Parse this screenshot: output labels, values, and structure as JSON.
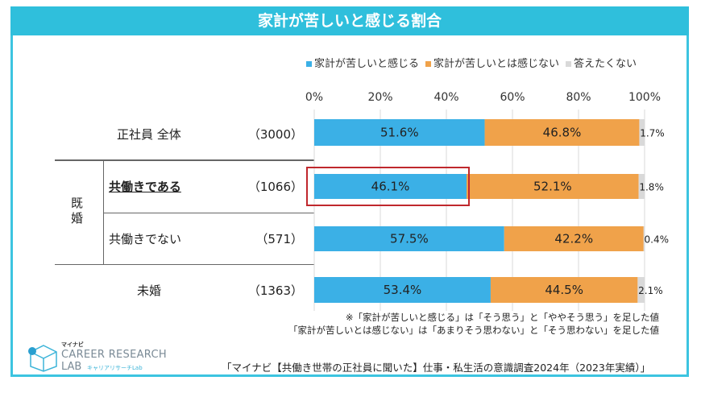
{
  "title": "家計が苦しいと感じる割合",
  "chart_data": {
    "type": "bar",
    "stacked": true,
    "orientation": "horizontal",
    "xlim": [
      0,
      100
    ],
    "ticks": [
      "0%",
      "20%",
      "40%",
      "60%",
      "80%",
      "100%"
    ],
    "grid": true,
    "legend_placement": "top",
    "categories": [
      {
        "label": "正社員 全体",
        "n": "（3000）"
      },
      {
        "label": "共働きである",
        "n": "（1066）",
        "group": "既婚",
        "highlight": true
      },
      {
        "label": "共働きでない",
        "n": "（571）",
        "group": "既婚"
      },
      {
        "label": "未婚",
        "n": "（1363）"
      }
    ],
    "group_label": "既婚",
    "series": [
      {
        "name": "家計が苦しいと感じる",
        "color": "#3bb0e6",
        "values": [
          51.6,
          46.1,
          57.5,
          53.4
        ],
        "labels": [
          "51.6%",
          "46.1%",
          "57.5%",
          "53.4%"
        ]
      },
      {
        "name": "家計が苦しいとは感じない",
        "color": "#f0a24a",
        "values": [
          46.8,
          52.1,
          42.2,
          44.5
        ],
        "labels": [
          "46.8%",
          "52.1%",
          "42.2%",
          "44.5%"
        ]
      },
      {
        "name": "答えたくない",
        "color": "#d9d9d9",
        "values": [
          1.7,
          1.8,
          0.4,
          2.1
        ],
        "labels": [
          "1.7%",
          "1.8%",
          "0.4%",
          "2.1%"
        ]
      }
    ],
    "highlight_color": "#c0282d"
  },
  "notes": [
    "※「家計が苦しいと感じる」は「そう思う」と「ややそう思う」を足した値",
    "「家計が苦しいとは感じない」は「あまりそう思わない」と「そう思わない」を足した値"
  ],
  "source": "「マイナビ【共働き世帯の正社員に聞いた】仕事・私生活の意識調査2024年（2023年実績）」",
  "logo": {
    "top": "マイナビ",
    "line1": "CAREER RESEARCH",
    "line2": "LAB",
    "sub": "キャリアリサーチLab",
    "color": "#3cb4d8"
  }
}
